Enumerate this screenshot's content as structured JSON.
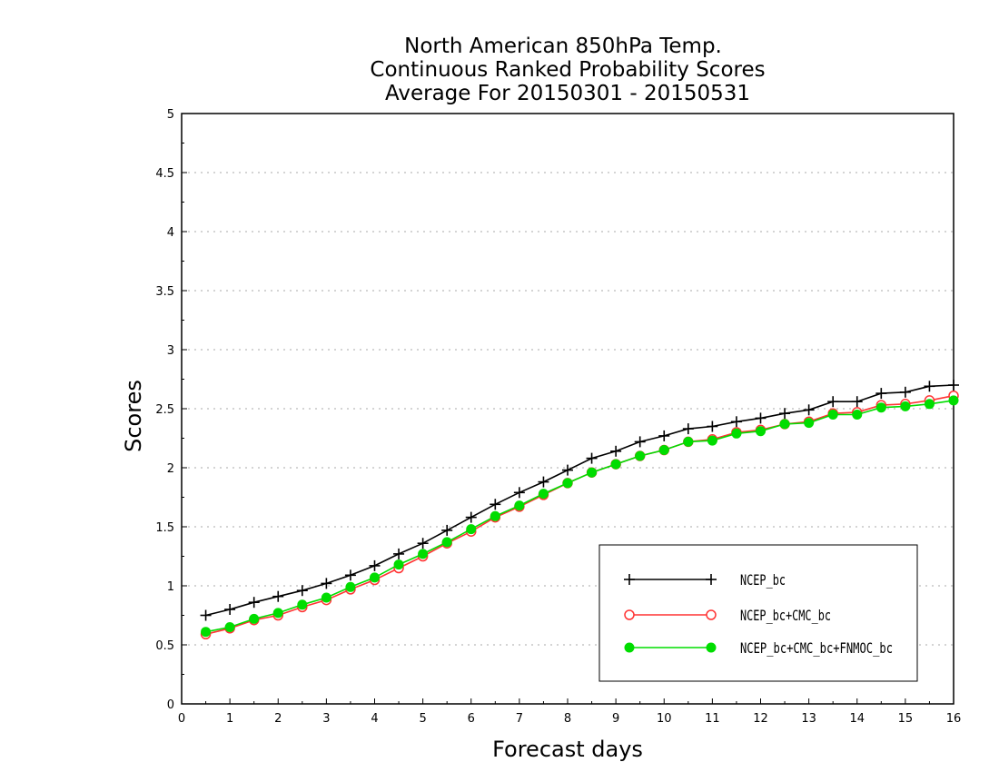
{
  "chart_data": {
    "type": "line",
    "title": [
      "North American 850hPa Temp.",
      "Continuous Ranked Probability Scores",
      "Average For 20150301 - 20150531"
    ],
    "xlabel": "Forecast days",
    "ylabel": "Scores",
    "xlim": [
      0,
      16
    ],
    "ylim": [
      0,
      5
    ],
    "xticks": [
      "0",
      "1",
      "2",
      "3",
      "4",
      "5",
      "6",
      "7",
      "8",
      "9",
      "10",
      "11",
      "12",
      "13",
      "14",
      "15",
      "16"
    ],
    "yticks": [
      "0",
      "0.5",
      "1",
      "1.5",
      "2",
      "2.5",
      "3",
      "3.5",
      "4",
      "4.5",
      "5"
    ],
    "grid": true,
    "legend_position": "lower-right",
    "x": [
      0.5,
      1,
      1.5,
      2,
      2.5,
      3,
      3.5,
      4,
      4.5,
      5,
      5.5,
      6,
      6.5,
      7,
      7.5,
      8,
      8.5,
      9,
      9.5,
      10,
      10.5,
      11,
      11.5,
      12,
      12.5,
      13,
      13.5,
      14,
      14.5,
      15,
      15.5,
      16
    ],
    "series": [
      {
        "name": "NCEP_bc",
        "color": "#000000",
        "marker": "plus",
        "values": [
          0.75,
          0.8,
          0.86,
          0.91,
          0.96,
          1.02,
          1.09,
          1.17,
          1.27,
          1.36,
          1.47,
          1.58,
          1.69,
          1.79,
          1.88,
          1.98,
          2.08,
          2.14,
          2.22,
          2.27,
          2.33,
          2.35,
          2.39,
          2.42,
          2.46,
          2.49,
          2.56,
          2.56,
          2.63,
          2.64,
          2.69,
          2.7
        ]
      },
      {
        "name": "NCEP_bc+CMC_bc",
        "color": "#ff3333",
        "marker": "open-circle",
        "values": [
          0.59,
          0.64,
          0.71,
          0.75,
          0.82,
          0.88,
          0.97,
          1.05,
          1.15,
          1.25,
          1.36,
          1.46,
          1.58,
          1.67,
          1.77,
          1.87,
          1.96,
          2.03,
          2.1,
          2.15,
          2.22,
          2.24,
          2.3,
          2.32,
          2.37,
          2.39,
          2.46,
          2.47,
          2.53,
          2.54,
          2.57,
          2.61
        ]
      },
      {
        "name": "NCEP_bc+CMC_bc+FNMOC_bc",
        "color": "#00dd00",
        "marker": "filled-circle",
        "values": [
          0.61,
          0.65,
          0.72,
          0.77,
          0.84,
          0.9,
          0.99,
          1.07,
          1.18,
          1.27,
          1.37,
          1.48,
          1.59,
          1.68,
          1.78,
          1.87,
          1.96,
          2.03,
          2.1,
          2.15,
          2.22,
          2.23,
          2.29,
          2.31,
          2.37,
          2.38,
          2.45,
          2.45,
          2.51,
          2.52,
          2.54,
          2.57
        ]
      }
    ]
  }
}
